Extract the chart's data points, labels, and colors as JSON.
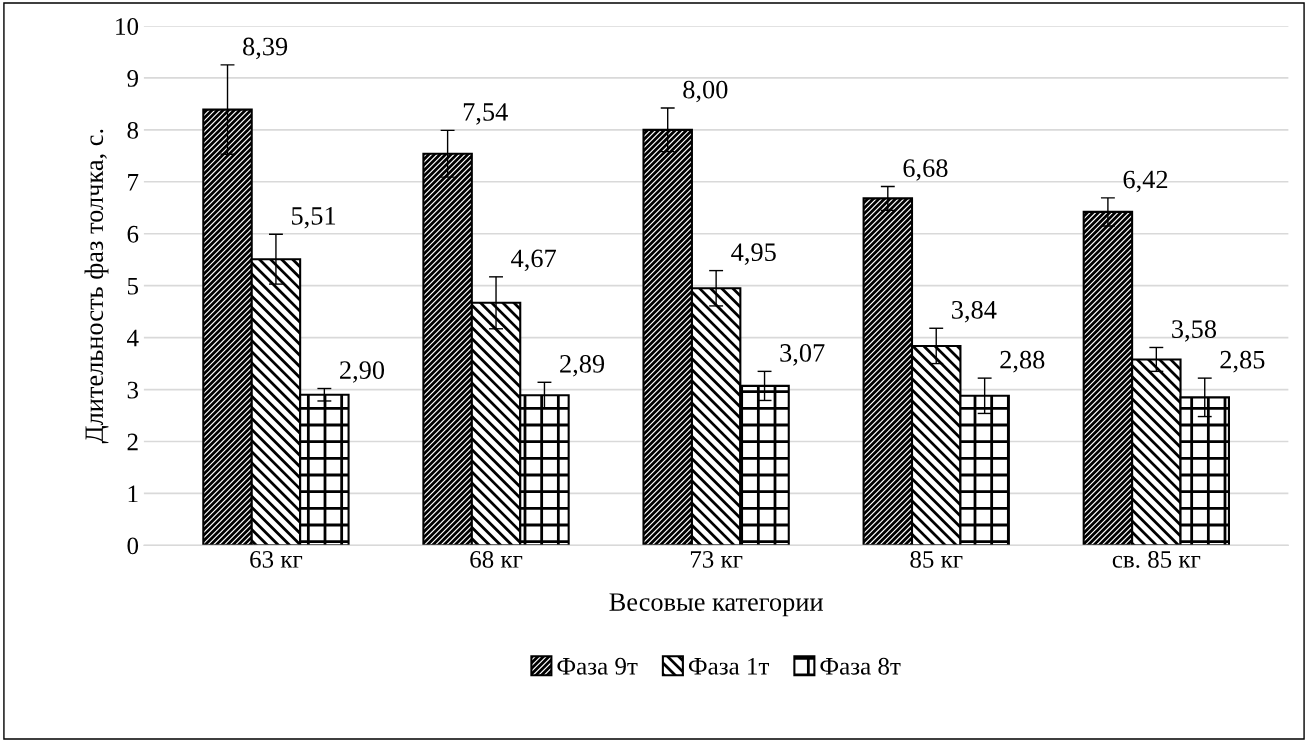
{
  "chart_data": {
    "type": "bar",
    "xlabel": "Весовые категории",
    "ylabel": "Длительность фаз толчка, с.",
    "categories": [
      "63 кг",
      "68 кг",
      "73 кг",
      "85 кг",
      "св. 85 кг"
    ],
    "series": [
      {
        "name": "Фаза 9т",
        "color": "#000000",
        "values": [
          8.39,
          7.54,
          8.0,
          6.68,
          6.42
        ],
        "errors": [
          0.86,
          0.45,
          0.42,
          0.23,
          0.27
        ],
        "value_labels": [
          "8,39",
          "7,54",
          "8,00",
          "6,68",
          "6,42"
        ]
      },
      {
        "name": "Фаза 1т",
        "color": "#000000",
        "values": [
          5.51,
          4.67,
          4.95,
          3.84,
          3.58
        ],
        "errors": [
          0.48,
          0.5,
          0.34,
          0.34,
          0.23
        ],
        "value_labels": [
          "5,51",
          "4,67",
          "4,95",
          "3,84",
          "3,58"
        ]
      },
      {
        "name": "Фаза 8т",
        "color": "#000000",
        "values": [
          2.9,
          2.89,
          3.07,
          2.88,
          2.85
        ],
        "errors": [
          0.12,
          0.25,
          0.28,
          0.34,
          0.37
        ],
        "value_labels": [
          "2,90",
          "2,89",
          "3,07",
          "2,88",
          "2,85"
        ]
      }
    ],
    "ylim": [
      0,
      10
    ],
    "yticks": [
      0,
      1,
      2,
      3,
      4,
      5,
      6,
      7,
      8,
      9,
      10
    ],
    "grid": "y",
    "legend": "bottom"
  }
}
